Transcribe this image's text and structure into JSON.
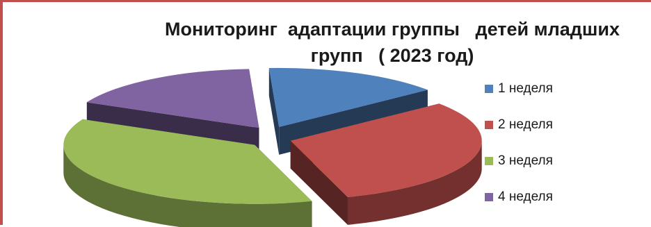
{
  "chart_data": {
    "type": "pie",
    "title": "Мониторинг  адаптации группы   детей младших\nгрупп   ( 2023 год)",
    "categories": [
      "1 неделя",
      "2 неделя",
      "3 неделя",
      "4 неделя"
    ],
    "values": [
      15,
      31,
      37,
      17
    ],
    "colors": [
      "#4f81bd",
      "#c0504d",
      "#9bbb59",
      "#8064a2"
    ],
    "style": "3d-exploded",
    "legend_position": "right"
  }
}
